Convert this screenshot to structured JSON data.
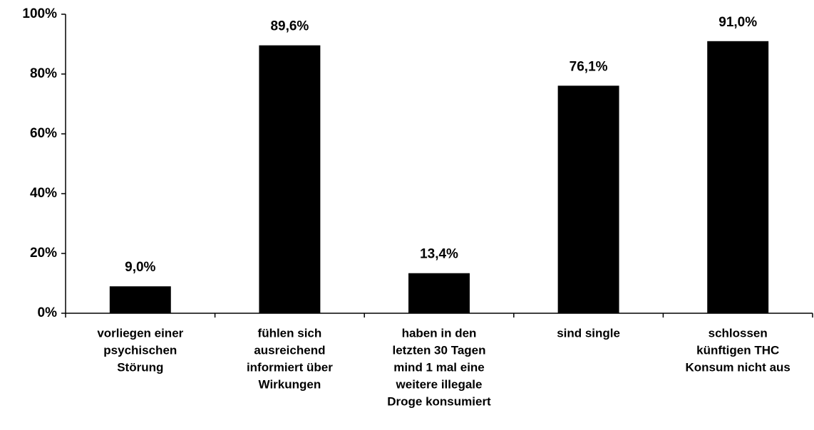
{
  "chart_data": {
    "type": "bar",
    "categories": [
      [
        "vorliegen einer",
        "psychischen",
        "Störung"
      ],
      [
        "fühlen sich",
        "ausreichend",
        "informiert über",
        "Wirkungen"
      ],
      [
        "haben in den",
        "letzten 30 Tagen",
        "mind 1 mal eine",
        "weitere illegale",
        "Droge konsumiert"
      ],
      [
        "sind single"
      ],
      [
        "schlossen",
        "künftigen THC",
        "Konsum nicht aus"
      ]
    ],
    "values": [
      9.0,
      89.6,
      13.4,
      76.1,
      91.0
    ],
    "value_labels": [
      "9,0%",
      "89,6%",
      "13,4%",
      "76,1%",
      "91,0%"
    ],
    "color": "#000000",
    "ylim": [
      0,
      100
    ],
    "yticks": [
      {
        "value": 0,
        "label": "0%"
      },
      {
        "value": 20,
        "label": "20%"
      },
      {
        "value": 40,
        "label": "40%"
      },
      {
        "value": 60,
        "label": "60%"
      },
      {
        "value": 80,
        "label": "80%"
      },
      {
        "value": 100,
        "label": "100%"
      }
    ],
    "grid": false
  }
}
